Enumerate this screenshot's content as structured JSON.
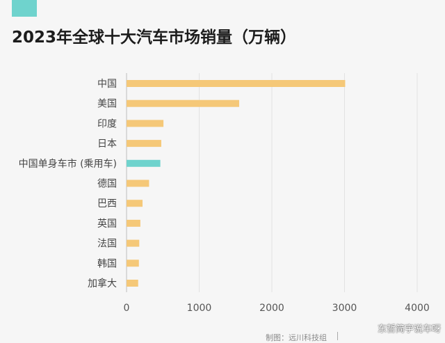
{
  "header": {
    "title": "2023年全球十大汽车市场销量（万辆）"
  },
  "colors": {
    "accent": "#6fd3cd",
    "bar_default": "#f5c878",
    "bar_highlight": "#6fd3cd",
    "grid": "#e2e2e2"
  },
  "footer": {
    "credit": "制图：远川科技组",
    "watermark": "东哲简宇说车呀"
  },
  "chart_data": {
    "type": "bar",
    "orientation": "horizontal",
    "title": "2023年全球十大汽车市场销量（万辆）",
    "categories": [
      "中国",
      "美国",
      "印度",
      "日本",
      "中国单身车市 (乘用车)",
      "德国",
      "巴西",
      "英国",
      "法国",
      "韩国",
      "加拿大"
    ],
    "values": [
      3009,
      1550,
      508,
      478,
      465,
      310,
      220,
      190,
      175,
      170,
      160
    ],
    "highlight_index": 4,
    "xlim": [
      0,
      4000
    ],
    "xticks": [
      0,
      1000,
      2000,
      3000,
      4000
    ],
    "grid": true,
    "legend": "none"
  }
}
